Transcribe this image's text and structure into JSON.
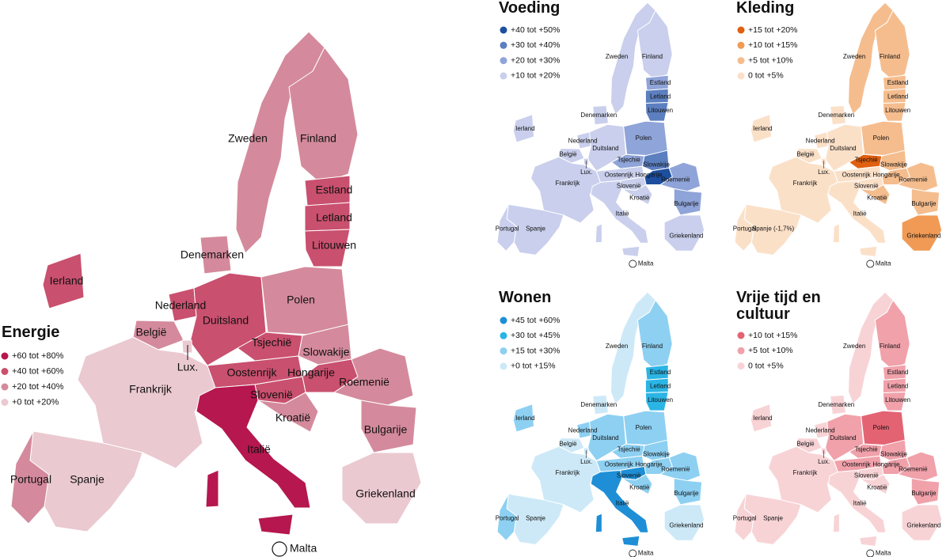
{
  "malta": "Malta",
  "maps": [
    {
      "title": "Energie",
      "legend": [
        {
          "label": "+60 tot +80%",
          "color": "#b5174e"
        },
        {
          "label": "+40 tot +60%",
          "color": "#c9506e"
        },
        {
          "label": "+20 tot +40%",
          "color": "#d48a9c"
        },
        {
          "label": "+0 tot +20%",
          "color": "#ebc9d1"
        }
      ],
      "countries": [
        {
          "name": "Zweden",
          "color": "#d48a9c"
        },
        {
          "name": "Finland",
          "color": "#d48a9c"
        },
        {
          "name": "Estland",
          "color": "#c9506e"
        },
        {
          "name": "Letland",
          "color": "#c9506e"
        },
        {
          "name": "Litouwen",
          "color": "#c9506e"
        },
        {
          "name": "Denemarken",
          "color": "#d48a9c"
        },
        {
          "name": "Ierland",
          "color": "#c9506e"
        },
        {
          "name": "Nederland",
          "color": "#c9506e"
        },
        {
          "name": "Duitsland",
          "color": "#c9506e"
        },
        {
          "name": "Polen",
          "color": "#d48a9c"
        },
        {
          "name": "België",
          "color": "#d48a9c"
        },
        {
          "name": "Lux.",
          "color": "#ebc9d1"
        },
        {
          "name": "Tsjechië",
          "color": "#c9506e"
        },
        {
          "name": "Slowakije",
          "color": "#d48a9c"
        },
        {
          "name": "Frankrijk",
          "color": "#ebc9d1"
        },
        {
          "name": "Oostenrijk",
          "color": "#c9506e"
        },
        {
          "name": "Hongarije",
          "color": "#c9506e"
        },
        {
          "name": "Roemenië",
          "color": "#d48a9c"
        },
        {
          "name": "Slovenië",
          "color": "#c9506e"
        },
        {
          "name": "Kroatië",
          "color": "#d48a9c"
        },
        {
          "name": "Bulgarije",
          "color": "#d48a9c"
        },
        {
          "name": "Griekenland",
          "color": "#ebc9d1"
        },
        {
          "name": "Italië",
          "color": "#b5174e"
        },
        {
          "name": "Spanje",
          "color": "#ebc9d1"
        },
        {
          "name": "Portugal",
          "color": "#d48a9c"
        }
      ]
    },
    {
      "title": "Voeding",
      "legend": [
        {
          "label": "+40 tot +50%",
          "color": "#1d4f9e"
        },
        {
          "label": "+30 tot +40%",
          "color": "#5c7fc0"
        },
        {
          "label": "+20 tot +30%",
          "color": "#8fa4d8"
        },
        {
          "label": "+10 tot +20%",
          "color": "#c9cfec"
        }
      ],
      "countries": [
        {
          "name": "Zweden",
          "color": "#c9cfec"
        },
        {
          "name": "Finland",
          "color": "#c9cfec"
        },
        {
          "name": "Estland",
          "color": "#8fa4d8"
        },
        {
          "name": "Letland",
          "color": "#5c7fc0"
        },
        {
          "name": "Litouwen",
          "color": "#5c7fc0"
        },
        {
          "name": "Denemarken",
          "color": "#c9cfec"
        },
        {
          "name": "Ierland",
          "color": "#c9cfec"
        },
        {
          "name": "Nederland",
          "color": "#c9cfec"
        },
        {
          "name": "Duitsland",
          "color": "#c9cfec"
        },
        {
          "name": "Polen",
          "color": "#8fa4d8"
        },
        {
          "name": "België",
          "color": "#c9cfec"
        },
        {
          "name": "Lux.",
          "color": "#c9cfec"
        },
        {
          "name": "Tsjechië",
          "color": "#8fa4d8"
        },
        {
          "name": "Slowakije",
          "color": "#5c7fc0"
        },
        {
          "name": "Frankrijk",
          "color": "#c9cfec"
        },
        {
          "name": "Oostenrijk",
          "color": "#c9cfec"
        },
        {
          "name": "Hongarije",
          "color": "#1d4f9e"
        },
        {
          "name": "Roemenië",
          "color": "#8fa4d8"
        },
        {
          "name": "Slovenië",
          "color": "#c9cfec"
        },
        {
          "name": "Kroatië",
          "color": "#c9cfec"
        },
        {
          "name": "Bulgarije",
          "color": "#8fa4d8"
        },
        {
          "name": "Griekenland",
          "color": "#c9cfec"
        },
        {
          "name": "Italië",
          "color": "#c9cfec"
        },
        {
          "name": "Spanje",
          "color": "#c9cfec"
        },
        {
          "name": "Portugal",
          "color": "#c9cfec"
        }
      ]
    },
    {
      "title": "Kleding",
      "legend": [
        {
          "label": "+15 tot +20%",
          "color": "#e0600f"
        },
        {
          "label": "+10 tot +15%",
          "color": "#f09a55"
        },
        {
          "label": "+5 tot +10%",
          "color": "#f5bd8e"
        },
        {
          "label": "0 tot +5%",
          "color": "#fbe0c8"
        }
      ],
      "countries": [
        {
          "name": "Zweden",
          "color": "#f5bd8e"
        },
        {
          "name": "Finland",
          "color": "#f5bd8e"
        },
        {
          "name": "Estland",
          "color": "#f5bd8e"
        },
        {
          "name": "Letland",
          "color": "#f5bd8e"
        },
        {
          "name": "Litouwen",
          "color": "#f5bd8e"
        },
        {
          "name": "Denemarken",
          "color": "#fbe0c8"
        },
        {
          "name": "Ierland",
          "color": "#fbe0c8"
        },
        {
          "name": "Nederland",
          "color": "#fbe0c8"
        },
        {
          "name": "Duitsland",
          "color": "#fbe0c8"
        },
        {
          "name": "Polen",
          "color": "#f5bd8e"
        },
        {
          "name": "België",
          "color": "#fbe0c8"
        },
        {
          "name": "Lux.",
          "color": "#fbe0c8"
        },
        {
          "name": "Tsjechië",
          "color": "#e0600f"
        },
        {
          "name": "Slowakije",
          "color": "#f5bd8e"
        },
        {
          "name": "Frankrijk",
          "color": "#fbe0c8"
        },
        {
          "name": "Oostenrijk",
          "color": "#fbe0c8"
        },
        {
          "name": "Hongarije",
          "color": "#f5bd8e"
        },
        {
          "name": "Roemenië",
          "color": "#f5bd8e"
        },
        {
          "name": "Slovenië",
          "color": "#fbe0c8"
        },
        {
          "name": "Kroatië",
          "color": "#f5bd8e"
        },
        {
          "name": "Bulgarije",
          "color": "#f5bd8e"
        },
        {
          "name": "Griekenland",
          "color": "#f09a55"
        },
        {
          "name": "Italië",
          "color": "#fbe0c8"
        },
        {
          "name": "Spanje (-1,7%)",
          "color": "#fbe0c8"
        },
        {
          "name": "Portugal",
          "color": "#fbe0c8"
        }
      ]
    },
    {
      "title": "Wonen",
      "legend": [
        {
          "label": "+45 tot +60%",
          "color": "#1e8fd6"
        },
        {
          "label": "+30 tot +45%",
          "color": "#2bb5e5"
        },
        {
          "label": "+15 tot +30%",
          "color": "#8dd0f2"
        },
        {
          "label": "+0 tot +15%",
          "color": "#cde9f8"
        }
      ],
      "countries": [
        {
          "name": "Zweden",
          "color": "#cde9f8"
        },
        {
          "name": "Finland",
          "color": "#8dd0f2"
        },
        {
          "name": "Estland",
          "color": "#2bb5e5"
        },
        {
          "name": "Letland",
          "color": "#2bb5e5"
        },
        {
          "name": "Litouwen",
          "color": "#2bb5e5"
        },
        {
          "name": "Denemarken",
          "color": "#cde9f8"
        },
        {
          "name": "Ierland",
          "color": "#8dd0f2"
        },
        {
          "name": "Nederland",
          "color": "#8dd0f2"
        },
        {
          "name": "Duitsland",
          "color": "#8dd0f2"
        },
        {
          "name": "Polen",
          "color": "#8dd0f2"
        },
        {
          "name": "België",
          "color": "#cde9f8"
        },
        {
          "name": "Lux.",
          "color": "#cde9f8"
        },
        {
          "name": "Tsjechië",
          "color": "#8dd0f2"
        },
        {
          "name": "Slowakije",
          "color": "#8dd0f2"
        },
        {
          "name": "Frankrijk",
          "color": "#cde9f8"
        },
        {
          "name": "Oostenrijk",
          "color": "#8dd0f2"
        },
        {
          "name": "Hongarije",
          "color": "#8dd0f2"
        },
        {
          "name": "Roemenië",
          "color": "#8dd0f2"
        },
        {
          "name": "Slovenië",
          "color": "#1e8fd6"
        },
        {
          "name": "Kroatië",
          "color": "#8dd0f2"
        },
        {
          "name": "Bulgarije",
          "color": "#8dd0f2"
        },
        {
          "name": "Griekenland",
          "color": "#cde9f8"
        },
        {
          "name": "Italië",
          "color": "#1e8fd6"
        },
        {
          "name": "Spanje",
          "color": "#cde9f8"
        },
        {
          "name": "Portugal",
          "color": "#8dd0f2"
        }
      ]
    },
    {
      "title": "Vrije tijd en cultuur",
      "legend": [
        {
          "label": "+10 tot +15%",
          "color": "#e36373"
        },
        {
          "label": "+5 tot +10%",
          "color": "#f0a1aa"
        },
        {
          "label": "0 tot +5%",
          "color": "#f8d3d6"
        }
      ],
      "countries": [
        {
          "name": "Zweden",
          "color": "#f8d3d6"
        },
        {
          "name": "Finland",
          "color": "#f0a1aa"
        },
        {
          "name": "Estland",
          "color": "#f0a1aa"
        },
        {
          "name": "Letland",
          "color": "#f0a1aa"
        },
        {
          "name": "Litouwen",
          "color": "#f0a1aa"
        },
        {
          "name": "Denemarken",
          "color": "#f8d3d6"
        },
        {
          "name": "Ierland",
          "color": "#f8d3d6"
        },
        {
          "name": "Nederland",
          "color": "#f8d3d6"
        },
        {
          "name": "Duitsland",
          "color": "#f0a1aa"
        },
        {
          "name": "Polen",
          "color": "#e36373"
        },
        {
          "name": "België",
          "color": "#f8d3d6"
        },
        {
          "name": "Lux.",
          "color": "#f8d3d6"
        },
        {
          "name": "Tsjechië",
          "color": "#f0a1aa"
        },
        {
          "name": "Slowakije",
          "color": "#f0a1aa"
        },
        {
          "name": "Frankrijk",
          "color": "#f8d3d6"
        },
        {
          "name": "Oostenrijk",
          "color": "#f0a1aa"
        },
        {
          "name": "Hongarije",
          "color": "#f0a1aa"
        },
        {
          "name": "Roemenië",
          "color": "#f0a1aa"
        },
        {
          "name": "Slovenië",
          "color": "#f8d3d6"
        },
        {
          "name": "Kroatië",
          "color": "#f8d3d6"
        },
        {
          "name": "Bulgarije",
          "color": "#f0a1aa"
        },
        {
          "name": "Griekenland",
          "color": "#f8d3d6"
        },
        {
          "name": "Italië",
          "color": "#f8d3d6"
        },
        {
          "name": "Spanje",
          "color": "#f8d3d6"
        },
        {
          "name": "Portugal",
          "color": "#f8d3d6"
        }
      ]
    }
  ]
}
